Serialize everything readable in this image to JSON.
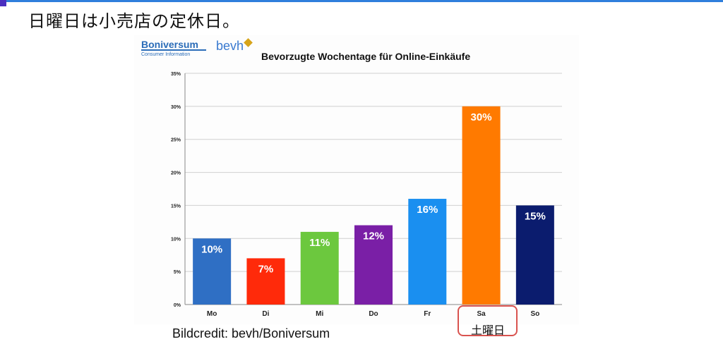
{
  "slide": {
    "title": "日曜日は小売店の定休日。",
    "credit": "Bildcredit: bevh/Boniversum",
    "annotation": "土曜日"
  },
  "logos": {
    "boniversum": "Boniversum",
    "boniversum_sub": "Consumer Information",
    "bevh": "bevh"
  },
  "colors": {
    "accent_rule": "#2f7fdc",
    "highlight_box": "#d9534f"
  },
  "chart_data": {
    "type": "bar",
    "title": "Bevorzugte Wochentage für Online-Einkäufe",
    "categories": [
      "Mo",
      "Di",
      "Mi",
      "Do",
      "Fr",
      "Sa",
      "So"
    ],
    "values": [
      10,
      7,
      11,
      12,
      16,
      30,
      15
    ],
    "value_labels": [
      "10%",
      "7%",
      "11%",
      "12%",
      "16%",
      "30%",
      "15%"
    ],
    "bar_colors": [
      "#2f6fc4",
      "#ff2a0a",
      "#6cc83e",
      "#7a1fa6",
      "#1a8ff0",
      "#ff7a00",
      "#0b1c6e"
    ],
    "yticks": [
      "0%",
      "5%",
      "10%",
      "15%",
      "20%",
      "25%",
      "30%",
      "35%"
    ],
    "ylim": [
      0,
      35
    ],
    "grid": true,
    "xlabel": "",
    "ylabel": ""
  }
}
